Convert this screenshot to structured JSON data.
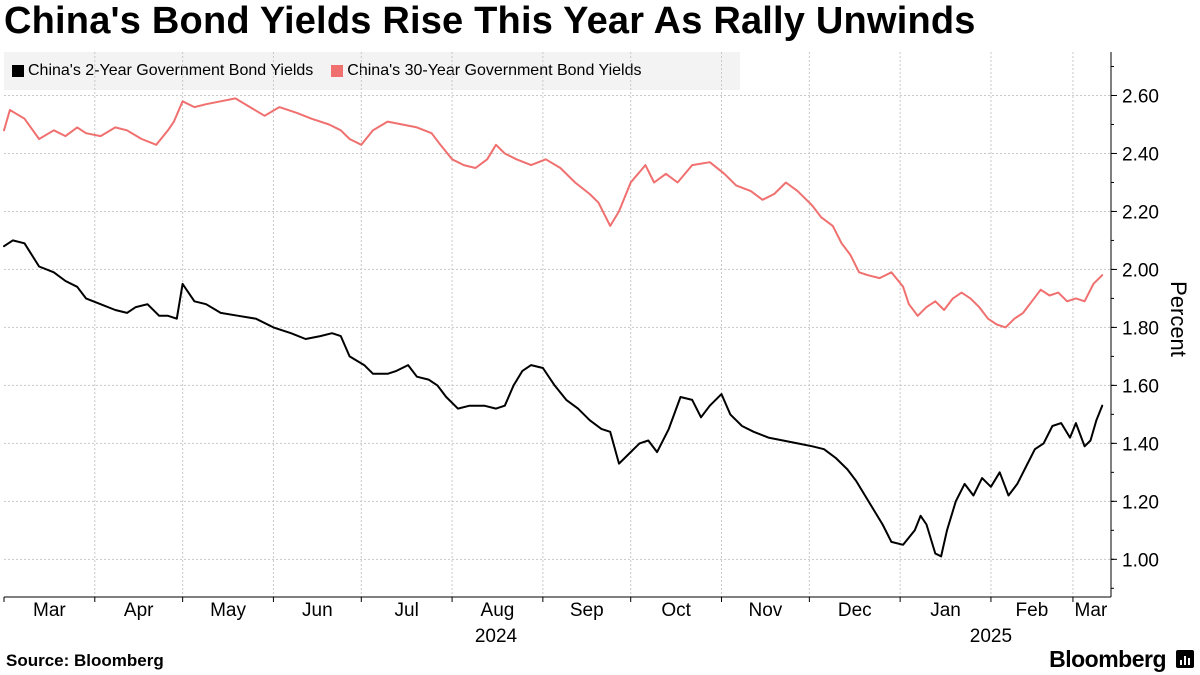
{
  "header": {
    "title": "China's Bond Yields Rise This Year As Rally Unwinds"
  },
  "legend": {
    "items": [
      {
        "label": "China's 2-Year Government Bond Yields",
        "color": "#000000"
      },
      {
        "label": "China's 30-Year Government Bond Yields",
        "color": "#f07070"
      }
    ]
  },
  "footer": {
    "source": "Source: Bloomberg",
    "brand": "Bloomberg"
  },
  "chart_data": {
    "type": "line",
    "title": "China's Bond Yields Rise This Year As Rally Unwinds",
    "ylabel": "Percent",
    "ylim": [
      0.87,
      2.75
    ],
    "yticks": [
      "1.00",
      "1.20",
      "1.40",
      "1.60",
      "1.80",
      "2.00",
      "2.20",
      "2.40",
      "2.60"
    ],
    "x_month_labels": [
      "Mar",
      "Apr",
      "May",
      "Jun",
      "Jul",
      "Aug",
      "Sep",
      "Oct",
      "Nov",
      "Dec",
      "Jan",
      "Feb",
      "Mar"
    ],
    "x_year_labels": [
      "2024",
      "2025"
    ],
    "grid": true,
    "legend_position": "top-left",
    "series": [
      {
        "name": "China's 2-Year Government Bond Yields",
        "color": "#000000",
        "points": [
          [
            "2024-03-01",
            2.08
          ],
          [
            "2024-03-04",
            2.1
          ],
          [
            "2024-03-08",
            2.09
          ],
          [
            "2024-03-13",
            2.01
          ],
          [
            "2024-03-18",
            1.99
          ],
          [
            "2024-03-22",
            1.96
          ],
          [
            "2024-03-26",
            1.94
          ],
          [
            "2024-03-29",
            1.9
          ],
          [
            "2024-04-03",
            1.88
          ],
          [
            "2024-04-08",
            1.86
          ],
          [
            "2024-04-12",
            1.85
          ],
          [
            "2024-04-15",
            1.87
          ],
          [
            "2024-04-19",
            1.88
          ],
          [
            "2024-04-23",
            1.84
          ],
          [
            "2024-04-26",
            1.84
          ],
          [
            "2024-04-29",
            1.83
          ],
          [
            "2024-05-01",
            1.95
          ],
          [
            "2024-05-05",
            1.89
          ],
          [
            "2024-05-09",
            1.88
          ],
          [
            "2024-05-14",
            1.85
          ],
          [
            "2024-05-20",
            1.84
          ],
          [
            "2024-05-26",
            1.83
          ],
          [
            "2024-06-01",
            1.8
          ],
          [
            "2024-06-07",
            1.78
          ],
          [
            "2024-06-12",
            1.76
          ],
          [
            "2024-06-17",
            1.77
          ],
          [
            "2024-06-21",
            1.78
          ],
          [
            "2024-06-24",
            1.77
          ],
          [
            "2024-06-27",
            1.7
          ],
          [
            "2024-07-02",
            1.67
          ],
          [
            "2024-07-05",
            1.64
          ],
          [
            "2024-07-10",
            1.64
          ],
          [
            "2024-07-13",
            1.65
          ],
          [
            "2024-07-17",
            1.67
          ],
          [
            "2024-07-20",
            1.63
          ],
          [
            "2024-07-24",
            1.62
          ],
          [
            "2024-07-27",
            1.6
          ],
          [
            "2024-07-30",
            1.56
          ],
          [
            "2024-08-03",
            1.52
          ],
          [
            "2024-08-07",
            1.53
          ],
          [
            "2024-08-12",
            1.53
          ],
          [
            "2024-08-16",
            1.52
          ],
          [
            "2024-08-19",
            1.53
          ],
          [
            "2024-08-22",
            1.6
          ],
          [
            "2024-08-25",
            1.65
          ],
          [
            "2024-08-28",
            1.67
          ],
          [
            "2024-09-01",
            1.66
          ],
          [
            "2024-09-05",
            1.6
          ],
          [
            "2024-09-09",
            1.55
          ],
          [
            "2024-09-13",
            1.52
          ],
          [
            "2024-09-17",
            1.48
          ],
          [
            "2024-09-21",
            1.45
          ],
          [
            "2024-09-24",
            1.44
          ],
          [
            "2024-09-27",
            1.33
          ],
          [
            "2024-10-01",
            1.37
          ],
          [
            "2024-10-04",
            1.4
          ],
          [
            "2024-10-07",
            1.41
          ],
          [
            "2024-10-10",
            1.37
          ],
          [
            "2024-10-14",
            1.45
          ],
          [
            "2024-10-18",
            1.56
          ],
          [
            "2024-10-22",
            1.55
          ],
          [
            "2024-10-25",
            1.49
          ],
          [
            "2024-10-28",
            1.53
          ],
          [
            "2024-11-01",
            1.57
          ],
          [
            "2024-11-04",
            1.5
          ],
          [
            "2024-11-08",
            1.46
          ],
          [
            "2024-11-12",
            1.44
          ],
          [
            "2024-11-17",
            1.42
          ],
          [
            "2024-11-22",
            1.41
          ],
          [
            "2024-11-27",
            1.4
          ],
          [
            "2024-12-02",
            1.39
          ],
          [
            "2024-12-06",
            1.38
          ],
          [
            "2024-12-10",
            1.35
          ],
          [
            "2024-12-14",
            1.31
          ],
          [
            "2024-12-17",
            1.27
          ],
          [
            "2024-12-20",
            1.22
          ],
          [
            "2024-12-23",
            1.17
          ],
          [
            "2024-12-26",
            1.12
          ],
          [
            "2024-12-29",
            1.06
          ],
          [
            "2025-01-02",
            1.05
          ],
          [
            "2025-01-06",
            1.1
          ],
          [
            "2025-01-08",
            1.15
          ],
          [
            "2025-01-10",
            1.12
          ],
          [
            "2025-01-13",
            1.02
          ],
          [
            "2025-01-15",
            1.01
          ],
          [
            "2025-01-17",
            1.1
          ],
          [
            "2025-01-20",
            1.2
          ],
          [
            "2025-01-23",
            1.26
          ],
          [
            "2025-01-26",
            1.22
          ],
          [
            "2025-01-29",
            1.28
          ],
          [
            "2025-02-01",
            1.25
          ],
          [
            "2025-02-04",
            1.3
          ],
          [
            "2025-02-07",
            1.22
          ],
          [
            "2025-02-10",
            1.26
          ],
          [
            "2025-02-13",
            1.32
          ],
          [
            "2025-02-16",
            1.38
          ],
          [
            "2025-02-19",
            1.4
          ],
          [
            "2025-02-22",
            1.46
          ],
          [
            "2025-02-25",
            1.47
          ],
          [
            "2025-02-28",
            1.42
          ],
          [
            "2025-03-02",
            1.47
          ],
          [
            "2025-03-05",
            1.39
          ],
          [
            "2025-03-07",
            1.41
          ],
          [
            "2025-03-09",
            1.48
          ],
          [
            "2025-03-11",
            1.53
          ]
        ]
      },
      {
        "name": "China's 30-Year Government Bond Yields",
        "color": "#f07070",
        "points": [
          [
            "2024-03-01",
            2.48
          ],
          [
            "2024-03-03",
            2.55
          ],
          [
            "2024-03-08",
            2.52
          ],
          [
            "2024-03-13",
            2.45
          ],
          [
            "2024-03-18",
            2.48
          ],
          [
            "2024-03-22",
            2.46
          ],
          [
            "2024-03-26",
            2.49
          ],
          [
            "2024-03-29",
            2.47
          ],
          [
            "2024-04-03",
            2.46
          ],
          [
            "2024-04-08",
            2.49
          ],
          [
            "2024-04-12",
            2.48
          ],
          [
            "2024-04-17",
            2.45
          ],
          [
            "2024-04-22",
            2.43
          ],
          [
            "2024-04-26",
            2.48
          ],
          [
            "2024-04-28",
            2.51
          ],
          [
            "2024-05-01",
            2.58
          ],
          [
            "2024-05-05",
            2.56
          ],
          [
            "2024-05-09",
            2.57
          ],
          [
            "2024-05-14",
            2.58
          ],
          [
            "2024-05-19",
            2.59
          ],
          [
            "2024-05-24",
            2.56
          ],
          [
            "2024-05-29",
            2.53
          ],
          [
            "2024-06-03",
            2.56
          ],
          [
            "2024-06-09",
            2.54
          ],
          [
            "2024-06-14",
            2.52
          ],
          [
            "2024-06-20",
            2.5
          ],
          [
            "2024-06-24",
            2.48
          ],
          [
            "2024-06-27",
            2.45
          ],
          [
            "2024-07-01",
            2.43
          ],
          [
            "2024-07-05",
            2.48
          ],
          [
            "2024-07-10",
            2.51
          ],
          [
            "2024-07-15",
            2.5
          ],
          [
            "2024-07-20",
            2.49
          ],
          [
            "2024-07-25",
            2.47
          ],
          [
            "2024-07-28",
            2.43
          ],
          [
            "2024-08-01",
            2.38
          ],
          [
            "2024-08-05",
            2.36
          ],
          [
            "2024-08-09",
            2.35
          ],
          [
            "2024-08-13",
            2.38
          ],
          [
            "2024-08-16",
            2.43
          ],
          [
            "2024-08-19",
            2.4
          ],
          [
            "2024-08-23",
            2.38
          ],
          [
            "2024-08-28",
            2.36
          ],
          [
            "2024-09-02",
            2.38
          ],
          [
            "2024-09-07",
            2.35
          ],
          [
            "2024-09-12",
            2.3
          ],
          [
            "2024-09-17",
            2.26
          ],
          [
            "2024-09-20",
            2.23
          ],
          [
            "2024-09-24",
            2.15
          ],
          [
            "2024-09-27",
            2.2
          ],
          [
            "2024-10-01",
            2.3
          ],
          [
            "2024-10-06",
            2.36
          ],
          [
            "2024-10-09",
            2.3
          ],
          [
            "2024-10-13",
            2.33
          ],
          [
            "2024-10-17",
            2.3
          ],
          [
            "2024-10-22",
            2.36
          ],
          [
            "2024-10-28",
            2.37
          ],
          [
            "2024-11-02",
            2.33
          ],
          [
            "2024-11-06",
            2.29
          ],
          [
            "2024-11-11",
            2.27
          ],
          [
            "2024-11-15",
            2.24
          ],
          [
            "2024-11-19",
            2.26
          ],
          [
            "2024-11-23",
            2.3
          ],
          [
            "2024-11-27",
            2.27
          ],
          [
            "2024-12-02",
            2.22
          ],
          [
            "2024-12-05",
            2.18
          ],
          [
            "2024-12-09",
            2.15
          ],
          [
            "2024-12-12",
            2.09
          ],
          [
            "2024-12-15",
            2.05
          ],
          [
            "2024-12-18",
            1.99
          ],
          [
            "2024-12-21",
            1.98
          ],
          [
            "2024-12-25",
            1.97
          ],
          [
            "2024-12-29",
            1.99
          ],
          [
            "2025-01-02",
            1.94
          ],
          [
            "2025-01-04",
            1.88
          ],
          [
            "2025-01-07",
            1.84
          ],
          [
            "2025-01-10",
            1.87
          ],
          [
            "2025-01-13",
            1.89
          ],
          [
            "2025-01-16",
            1.86
          ],
          [
            "2025-01-19",
            1.9
          ],
          [
            "2025-01-22",
            1.92
          ],
          [
            "2025-01-25",
            1.9
          ],
          [
            "2025-01-28",
            1.87
          ],
          [
            "2025-01-31",
            1.83
          ],
          [
            "2025-02-03",
            1.81
          ],
          [
            "2025-02-06",
            1.8
          ],
          [
            "2025-02-09",
            1.83
          ],
          [
            "2025-02-12",
            1.85
          ],
          [
            "2025-02-15",
            1.89
          ],
          [
            "2025-02-18",
            1.93
          ],
          [
            "2025-02-21",
            1.91
          ],
          [
            "2025-02-24",
            1.92
          ],
          [
            "2025-02-27",
            1.89
          ],
          [
            "2025-03-02",
            1.9
          ],
          [
            "2025-03-05",
            1.89
          ],
          [
            "2025-03-08",
            1.95
          ],
          [
            "2025-03-11",
            1.98
          ]
        ]
      }
    ]
  }
}
